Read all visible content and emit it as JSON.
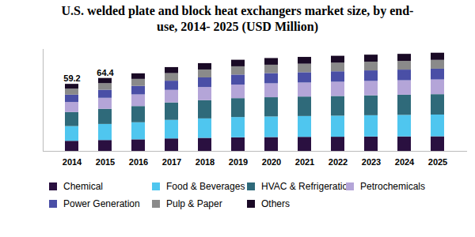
{
  "chart_data": {
    "type": "bar",
    "stacked": true,
    "title": "U.S. welded plate and block heat exchangers market size, by end-use, 2014- 2025 (USD Million)",
    "categories": [
      "2014",
      "2015",
      "2016",
      "2017",
      "2018",
      "2019",
      "2020",
      "2021",
      "2022",
      "2023",
      "2024",
      "2025"
    ],
    "series": [
      {
        "name": "Chemical",
        "color": "#2a1040",
        "values": [
          8.9,
          9.6,
          10.2,
          11.0,
          11.5,
          12.0,
          12.2,
          12.4,
          12.5,
          12.7,
          12.8,
          12.9
        ]
      },
      {
        "name": "Food & Beverages",
        "color": "#4fc6ef",
        "values": [
          13.0,
          14.2,
          15.1,
          16.4,
          17.2,
          17.9,
          18.2,
          18.4,
          18.6,
          18.8,
          19.0,
          19.2
        ]
      },
      {
        "name": "HVAC & Refrigeration",
        "color": "#2f6a7a",
        "values": [
          12.4,
          13.4,
          14.3,
          15.4,
          16.1,
          16.7,
          17.0,
          17.2,
          17.4,
          17.6,
          17.8,
          18.0
        ]
      },
      {
        "name": "Petrochemicals",
        "color": "#b4a5d8",
        "values": [
          8.9,
          9.7,
          10.3,
          11.1,
          11.6,
          12.0,
          12.3,
          12.4,
          12.6,
          12.7,
          12.8,
          13.0
        ]
      },
      {
        "name": "Power Generation",
        "color": "#4a4fa6",
        "values": [
          6.5,
          7.1,
          7.5,
          8.1,
          8.5,
          8.8,
          9.0,
          9.1,
          9.2,
          9.3,
          9.4,
          9.5
        ]
      },
      {
        "name": "Pulp & Paper",
        "color": "#8a8a8a",
        "values": [
          5.3,
          5.8,
          6.2,
          6.7,
          7.0,
          7.3,
          7.4,
          7.5,
          7.6,
          7.7,
          7.7,
          7.8
        ]
      },
      {
        "name": "Others",
        "color": "#1a0a26",
        "values": [
          4.2,
          4.6,
          4.9,
          5.3,
          5.6,
          5.8,
          5.9,
          6.0,
          6.1,
          6.2,
          6.2,
          6.3
        ]
      }
    ],
    "totals": [
      59.2,
      64.4,
      null,
      null,
      null,
      null,
      null,
      null,
      null,
      null,
      null,
      null
    ],
    "ylim": [
      0,
      90
    ],
    "yticks": [],
    "tick_labels": "x",
    "grid": false,
    "legend": "bottom"
  }
}
